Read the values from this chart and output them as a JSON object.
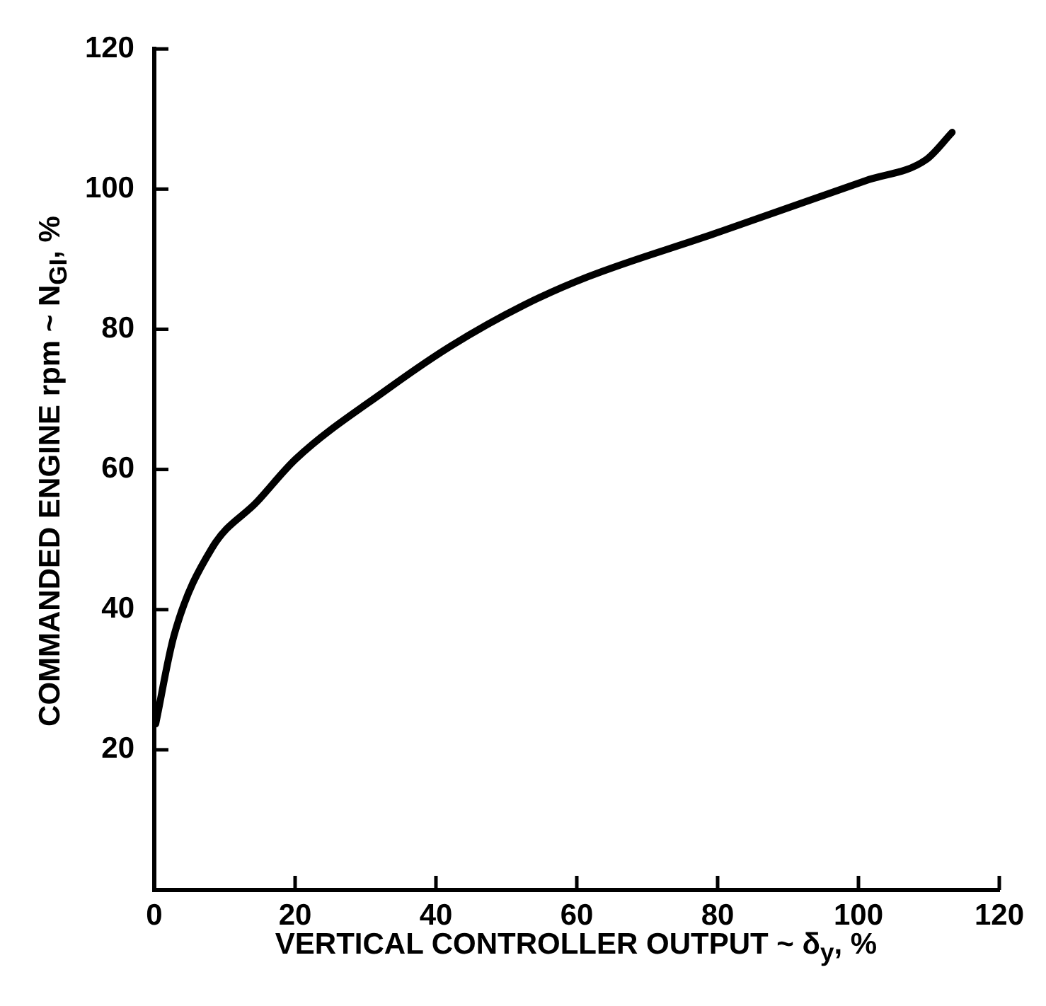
{
  "chart_data": {
    "type": "line",
    "xlabel": "VERTICAL CONTROLLER OUTPUT ~ δ$_{y}$, %",
    "ylabel": "COMMANDED ENGINE rpm ~ N$_{GI}$, %",
    "x": [
      0.2,
      2.8,
      8.2,
      14.6,
      20.1,
      32.9,
      42.1,
      52.6,
      61.6,
      79.4,
      101,
      109.6,
      113.3
    ],
    "series": [
      {
        "color": "#000000",
        "values": [
          23.7,
          36.3,
          48.8,
          55.4,
          61.5,
          71.3,
          77.6,
          83.5,
          87.5,
          93.6,
          101.2,
          104.2,
          108.1
        ]
      }
    ],
    "xlim": [
      0,
      120
    ],
    "xticks": [
      0,
      20,
      40,
      60,
      80,
      100,
      120
    ],
    "ylim": [
      0,
      120
    ],
    "yticks": [
      20,
      40,
      60,
      80,
      100,
      120
    ],
    "grid": false,
    "legend": false,
    "marker": "none",
    "line_style": "solid"
  }
}
